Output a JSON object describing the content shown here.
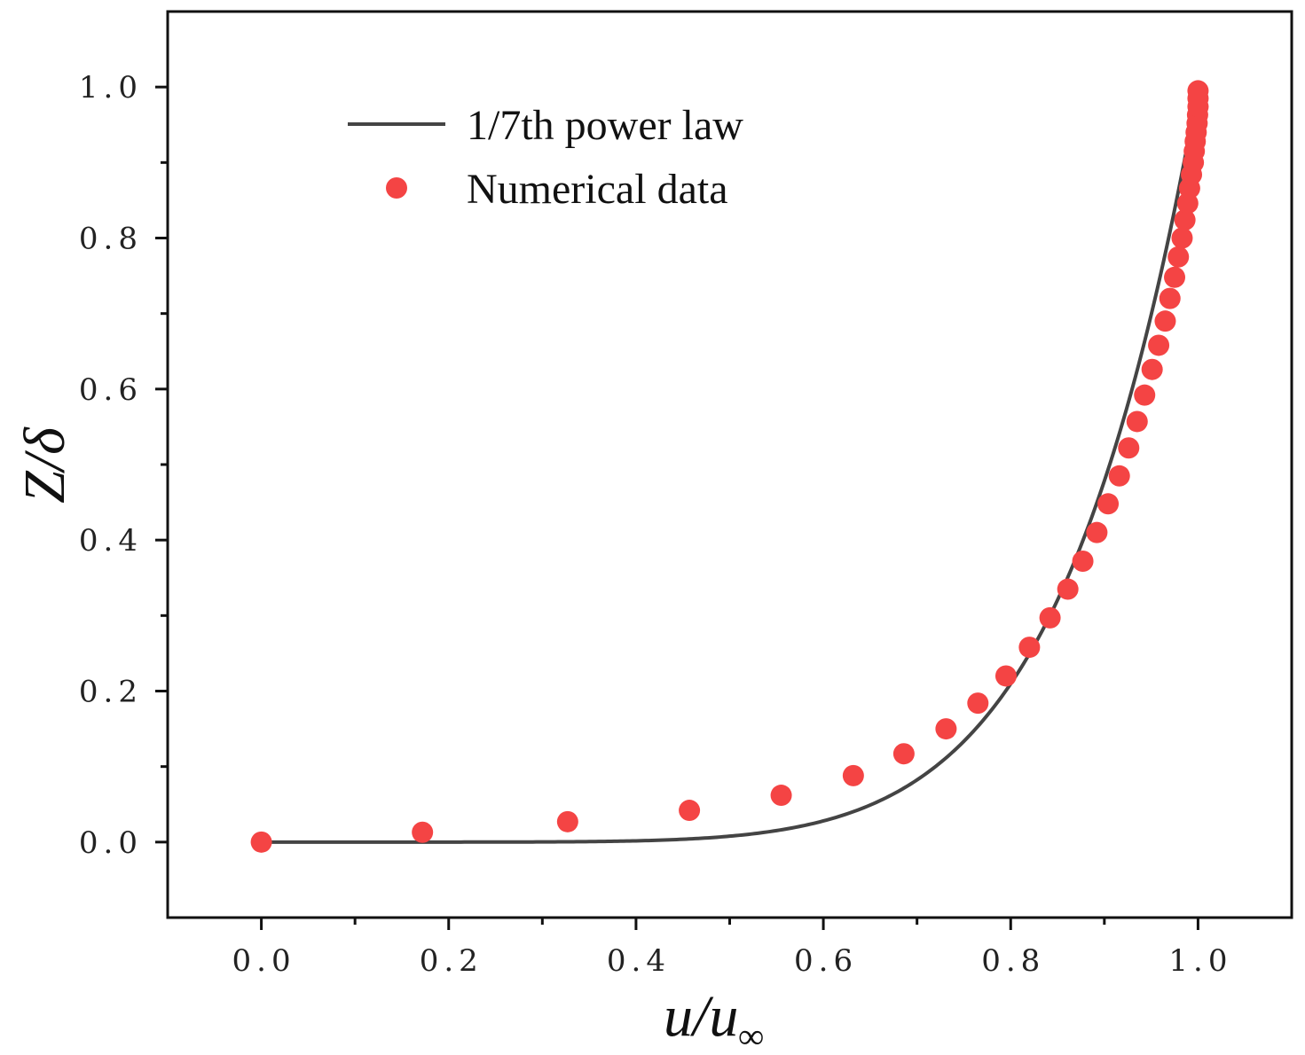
{
  "chart_data": {
    "type": "line+scatter",
    "title": "",
    "xlabel": "u/u∞",
    "xlabel_main": "u/u",
    "xlabel_sub": "∞",
    "ylabel": "Z/δ",
    "xlim": [
      -0.1,
      1.1
    ],
    "ylim": [
      -0.1,
      1.1
    ],
    "xticks": [
      0.0,
      0.2,
      0.4,
      0.6,
      0.8,
      1.0
    ],
    "yticks": [
      0.0,
      0.2,
      0.4,
      0.6,
      0.8,
      1.0
    ],
    "xtick_labels": [
      "0.0",
      "0.2",
      "0.4",
      "0.6",
      "0.8",
      "1.0"
    ],
    "ytick_labels": [
      "0.0",
      "0.2",
      "0.4",
      "0.6",
      "0.8",
      "1.0"
    ],
    "grid": false,
    "legend_position": "top-left",
    "series": [
      {
        "name": "1/7th power law",
        "kind": "line",
        "color": "#444444",
        "formula": "Z/δ = (u/u∞)^7",
        "exponent": 7
      },
      {
        "name": "Numerical data",
        "kind": "scatter",
        "color": "#f44444",
        "x": [
          0.0,
          0.172,
          0.327,
          0.457,
          0.555,
          0.632,
          0.686,
          0.731,
          0.765,
          0.795,
          0.82,
          0.842,
          0.861,
          0.877,
          0.892,
          0.904,
          0.916,
          0.926,
          0.935,
          0.943,
          0.951,
          0.958,
          0.965,
          0.97,
          0.975,
          0.979,
          0.983,
          0.986,
          0.989,
          0.991,
          0.993,
          0.995,
          0.996,
          0.997,
          0.998,
          0.999,
          0.9995,
          1.0,
          1.0,
          1.0
        ],
        "y": [
          0.0,
          0.013,
          0.027,
          0.042,
          0.062,
          0.088,
          0.117,
          0.15,
          0.184,
          0.22,
          0.258,
          0.297,
          0.335,
          0.372,
          0.41,
          0.448,
          0.485,
          0.522,
          0.557,
          0.592,
          0.626,
          0.658,
          0.69,
          0.72,
          0.748,
          0.775,
          0.8,
          0.824,
          0.846,
          0.866,
          0.884,
          0.9,
          0.915,
          0.928,
          0.94,
          0.952,
          0.963,
          0.974,
          0.985,
          0.995
        ]
      }
    ]
  }
}
